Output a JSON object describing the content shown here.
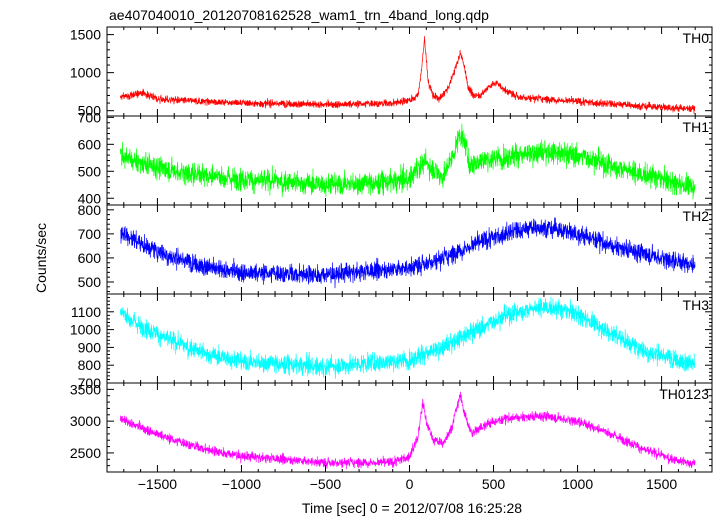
{
  "chart_data": {
    "type": "line",
    "title": "ae407040010_20120708162528_wam1_trn_4band_long.qdp",
    "xlabel": "Time [sec] 0 = 2012/07/08 16:25:28",
    "ylabel": "Counts/sec",
    "xlim": [
      -1800,
      1800
    ],
    "x_ticks": [
      -1500,
      -1000,
      -500,
      0,
      500,
      1000,
      1500
    ],
    "x_tick_labels": [
      "−1500",
      "−1000",
      "−500",
      "0",
      "500",
      "1000",
      "1500"
    ],
    "data_x_range": [
      -1720,
      1700
    ],
    "panels": [
      {
        "name": "TH0",
        "color": "#ff0000",
        "ylim": [
          430,
          1600
        ],
        "y_ticks": [
          500,
          1000,
          1500
        ],
        "y_tick_labels": [
          "500",
          "1000",
          "1500"
        ],
        "noise": 35,
        "trend": [
          [
            -1720,
            680
          ],
          [
            -1650,
            700
          ],
          [
            -1600,
            740
          ],
          [
            -1550,
            700
          ],
          [
            -1500,
            650
          ],
          [
            -1000,
            600
          ],
          [
            -500,
            580
          ],
          [
            -100,
            600
          ],
          [
            0,
            640
          ],
          [
            50,
            700
          ],
          [
            70,
            1000
          ],
          [
            90,
            1450
          ],
          [
            110,
            900
          ],
          [
            140,
            700
          ],
          [
            180,
            650
          ],
          [
            230,
            800
          ],
          [
            280,
            1100
          ],
          [
            300,
            1250
          ],
          [
            320,
            1150
          ],
          [
            350,
            800
          ],
          [
            380,
            700
          ],
          [
            420,
            700
          ],
          [
            480,
            830
          ],
          [
            520,
            870
          ],
          [
            560,
            780
          ],
          [
            650,
            680
          ],
          [
            1000,
            620
          ],
          [
            1400,
            560
          ],
          [
            1700,
            520
          ]
        ]
      },
      {
        "name": "TH1",
        "color": "#00ff00",
        "ylim": [
          375,
          705
        ],
        "y_ticks": [
          400,
          500,
          600,
          700
        ],
        "y_tick_labels": [
          "400",
          "500",
          "600",
          "700"
        ],
        "noise": 30,
        "trend": [
          [
            -1720,
            560
          ],
          [
            -1600,
            530
          ],
          [
            -1400,
            500
          ],
          [
            -1000,
            470
          ],
          [
            -500,
            450
          ],
          [
            -200,
            455
          ],
          [
            0,
            470
          ],
          [
            50,
            520
          ],
          [
            100,
            530
          ],
          [
            150,
            500
          ],
          [
            200,
            480
          ],
          [
            260,
            560
          ],
          [
            300,
            640
          ],
          [
            330,
            600
          ],
          [
            360,
            520
          ],
          [
            420,
            540
          ],
          [
            600,
            555
          ],
          [
            800,
            570
          ],
          [
            1000,
            560
          ],
          [
            1200,
            520
          ],
          [
            1500,
            470
          ],
          [
            1700,
            440
          ]
        ]
      },
      {
        "name": "TH2",
        "color": "#0000ff",
        "ylim": [
          450,
          820
        ],
        "y_ticks": [
          500,
          600,
          700,
          800
        ],
        "y_tick_labels": [
          "500",
          "600",
          "700",
          "800"
        ],
        "noise": 28,
        "trend": [
          [
            -1720,
            710
          ],
          [
            -1600,
            660
          ],
          [
            -1400,
            600
          ],
          [
            -1200,
            560
          ],
          [
            -1000,
            540
          ],
          [
            -500,
            530
          ],
          [
            0,
            560
          ],
          [
            200,
            600
          ],
          [
            400,
            660
          ],
          [
            600,
            710
          ],
          [
            800,
            730
          ],
          [
            1000,
            700
          ],
          [
            1200,
            650
          ],
          [
            1500,
            600
          ],
          [
            1700,
            570
          ]
        ]
      },
      {
        "name": "TH3",
        "color": "#00ffff",
        "ylim": [
          700,
          1200
        ],
        "y_ticks": [
          700,
          800,
          900,
          1000,
          1100
        ],
        "y_tick_labels": [
          "700",
          "800",
          "900",
          "1000",
          "1100"
        ],
        "noise": 38,
        "trend": [
          [
            -1720,
            1100
          ],
          [
            -1600,
            1020
          ],
          [
            -1400,
            930
          ],
          [
            -1200,
            860
          ],
          [
            -1000,
            820
          ],
          [
            -500,
            790
          ],
          [
            0,
            830
          ],
          [
            200,
            900
          ],
          [
            400,
            1000
          ],
          [
            600,
            1090
          ],
          [
            800,
            1130
          ],
          [
            1000,
            1090
          ],
          [
            1200,
            980
          ],
          [
            1400,
            880
          ],
          [
            1700,
            800
          ]
        ]
      },
      {
        "name": "TH0123",
        "color": "#ff00ff",
        "ylim": [
          2200,
          3600
        ],
        "y_ticks": [
          2500,
          3000,
          3500
        ],
        "y_tick_labels": [
          "2500",
          "3000",
          "3500"
        ],
        "noise": 55,
        "trend": [
          [
            -1720,
            3040
          ],
          [
            -1600,
            2900
          ],
          [
            -1400,
            2700
          ],
          [
            -1200,
            2550
          ],
          [
            -1000,
            2450
          ],
          [
            -500,
            2350
          ],
          [
            -100,
            2350
          ],
          [
            0,
            2450
          ],
          [
            50,
            2750
          ],
          [
            80,
            3300
          ],
          [
            100,
            3000
          ],
          [
            140,
            2700
          ],
          [
            200,
            2650
          ],
          [
            250,
            2900
          ],
          [
            300,
            3400
          ],
          [
            330,
            3100
          ],
          [
            370,
            2800
          ],
          [
            450,
            2950
          ],
          [
            600,
            3050
          ],
          [
            800,
            3080
          ],
          [
            1000,
            3000
          ],
          [
            1200,
            2800
          ],
          [
            1400,
            2550
          ],
          [
            1600,
            2370
          ],
          [
            1700,
            2330
          ]
        ]
      }
    ]
  }
}
